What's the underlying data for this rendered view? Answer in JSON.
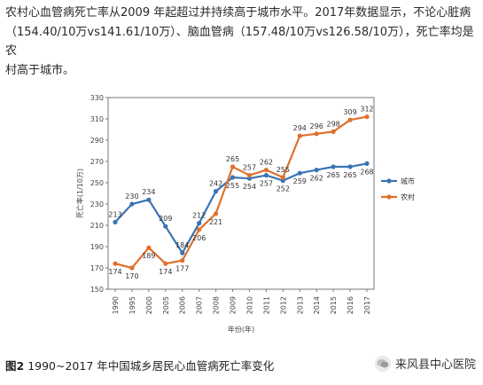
{
  "intro": {
    "lines": [
      "农村心血管病死亡率从2009 年起超过并持续高于城市水平。2017年数据显示，不论心脏病",
      "（154.40/10万vs141.61/10万）、脑血管病（157.48/10万vs126.58/10万），死亡率均是农",
      "村高于城市。"
    ]
  },
  "caption": {
    "label": "图2",
    "text": "1990~2017 年中国城乡居民心血管病死亡率变化"
  },
  "watermark": {
    "text": "来风县中心医院",
    "icon": "wechat-icon"
  },
  "chart_data": {
    "type": "line",
    "categories": [
      "1990",
      "1995",
      "2000",
      "2005",
      "2006",
      "2007",
      "2008",
      "2009",
      "2010",
      "2011",
      "2012",
      "2013",
      "2014",
      "2015",
      "2016",
      "2017"
    ],
    "series": [
      {
        "name": "城市",
        "color": "#3a74b4",
        "values": [
          213,
          230,
          234,
          209,
          184,
          212,
          242,
          255,
          254,
          257,
          252,
          259,
          262,
          265,
          265,
          268
        ]
      },
      {
        "name": "农村",
        "color": "#e0702c",
        "values": [
          174,
          170,
          189,
          174,
          177,
          206,
          221,
          265,
          257,
          262,
          255,
          294,
          296,
          298,
          309,
          312
        ]
      }
    ],
    "xlabel": "年份(年)",
    "ylabel": "死亡率(1/10万)",
    "ylim": [
      150,
      330
    ],
    "yticks": [
      150,
      170,
      190,
      210,
      230,
      250,
      270,
      290,
      310,
      330
    ],
    "grid": false,
    "legend": "right"
  }
}
